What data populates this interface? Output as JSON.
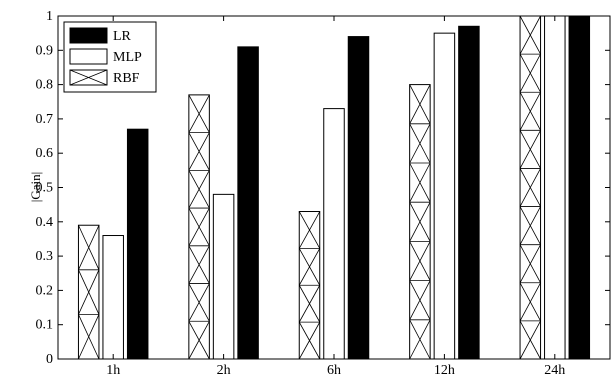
{
  "chart_data": {
    "type": "bar",
    "title": "",
    "xlabel": "",
    "ylabel": "|Gain|",
    "categories": [
      "1h",
      "2h",
      "6h",
      "12h",
      "24h"
    ],
    "ylim": [
      0,
      1
    ],
    "yticks": [
      "0",
      "0.1",
      "0.2",
      "0.3",
      "0.4",
      "0.5",
      "0.6",
      "0.7",
      "0.8",
      "0.9",
      "1"
    ],
    "grid": false,
    "legend": {
      "placement": "top-left"
    },
    "series": [
      {
        "name": "RBF",
        "values": [
          0.39,
          0.77,
          0.43,
          0.8,
          1.0
        ],
        "fill": "hatch-x"
      },
      {
        "name": "MLP",
        "values": [
          0.36,
          0.48,
          0.73,
          0.95,
          1.0
        ],
        "fill": "#ffffff"
      },
      {
        "name": "LR",
        "values": [
          0.67,
          0.91,
          0.94,
          0.97,
          1.0
        ],
        "fill": "#000000"
      }
    ],
    "legend_order": [
      "LR",
      "MLP",
      "RBF"
    ]
  }
}
